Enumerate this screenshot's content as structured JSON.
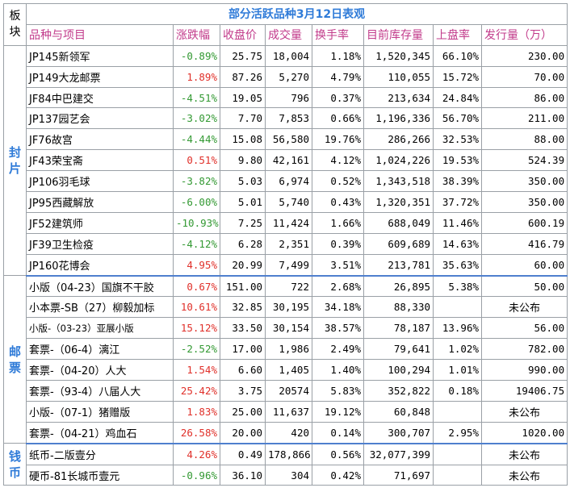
{
  "title": "部分活跃品种3月12日表观",
  "corner_label": "板块",
  "headers": [
    "品种与项目",
    "涨跌幅",
    "收盘价",
    "成交量",
    "换手率",
    "目前库存量",
    "上盘率",
    "发行量（万）"
  ],
  "groups": [
    {
      "name": "封片",
      "rows": [
        {
          "name": "JP145新领军",
          "change": "-0.89%",
          "close": "25.75",
          "volume": "18,004",
          "turnover": "1.18%",
          "stock": "1,520,345",
          "listing": "66.10%",
          "issue": "230.00"
        },
        {
          "name": "JP149大龙邮票",
          "change": "1.89%",
          "close": "87.26",
          "volume": "5,270",
          "turnover": "4.79%",
          "stock": "110,055",
          "listing": "15.72%",
          "issue": "70.00"
        },
        {
          "name": "JF84中巴建交",
          "change": "-4.51%",
          "close": "19.05",
          "volume": "796",
          "turnover": "0.37%",
          "stock": "213,634",
          "listing": "24.84%",
          "issue": "86.00"
        },
        {
          "name": "JP137园艺会",
          "change": "-3.02%",
          "close": "7.70",
          "volume": "7,853",
          "turnover": "0.66%",
          "stock": "1,196,336",
          "listing": "56.70%",
          "issue": "211.00"
        },
        {
          "name": "JF76故宫",
          "change": "-4.44%",
          "close": "15.08",
          "volume": "56,580",
          "turnover": "19.76%",
          "stock": "286,266",
          "listing": "32.53%",
          "issue": "88.00"
        },
        {
          "name": "JF43荣宝斋",
          "change": "0.51%",
          "close": "9.80",
          "volume": "42,161",
          "turnover": "4.12%",
          "stock": "1,024,226",
          "listing": "19.53%",
          "issue": "524.39"
        },
        {
          "name": "JP106羽毛球",
          "change": "-3.82%",
          "close": "5.03",
          "volume": "6,974",
          "turnover": "0.52%",
          "stock": "1,343,518",
          "listing": "38.39%",
          "issue": "350.00"
        },
        {
          "name": "JP95西藏解放",
          "change": "-6.00%",
          "close": "5.01",
          "volume": "5,740",
          "turnover": "0.43%",
          "stock": "1,320,351",
          "listing": "37.72%",
          "issue": "350.00"
        },
        {
          "name": "JF52建筑师",
          "change": "-10.93%",
          "close": "7.25",
          "volume": "11,424",
          "turnover": "1.66%",
          "stock": "688,049",
          "listing": "11.46%",
          "issue": "600.19"
        },
        {
          "name": "JF39卫生检疫",
          "change": "-4.12%",
          "close": "6.28",
          "volume": "2,351",
          "turnover": "0.39%",
          "stock": "609,689",
          "listing": "14.63%",
          "issue": "416.79"
        },
        {
          "name": "JP160花博会",
          "change": "4.95%",
          "close": "20.99",
          "volume": "7,499",
          "turnover": "3.51%",
          "stock": "213,781",
          "listing": "35.63%",
          "issue": "60.00"
        }
      ]
    },
    {
      "name": "邮票",
      "rows": [
        {
          "name": "小版（04-23）国旗不干胶",
          "change": "0.67%",
          "close": "151.00",
          "volume": "722",
          "turnover": "2.68%",
          "stock": "26,895",
          "listing": "5.38%",
          "issue": "50.00"
        },
        {
          "name": "小本票-SB（27）柳毅加标",
          "change": "10.61%",
          "close": "32.85",
          "volume": "30,195",
          "turnover": "34.18%",
          "stock": "88,330",
          "listing": "",
          "issue": "未公布"
        },
        {
          "name": "小版-（03-23）亚展小版",
          "change": "15.12%",
          "close": "33.50",
          "volume": "30,154",
          "turnover": "38.57%",
          "stock": "78,187",
          "listing": "13.96%",
          "issue": "56.00",
          "small": true
        },
        {
          "name": "套票-（06-4）漓江",
          "change": "-2.52%",
          "close": "17.00",
          "volume": "1,986",
          "turnover": "2.49%",
          "stock": "79,641",
          "listing": "1.02%",
          "issue": "782.00"
        },
        {
          "name": "套票-（04-20）人大",
          "change": "1.54%",
          "close": "6.60",
          "volume": "1,405",
          "turnover": "1.40%",
          "stock": "100,294",
          "listing": "1.01%",
          "issue": "990.00"
        },
        {
          "name": "套票-（93-4）八届人大",
          "change": "25.42%",
          "close": "3.75",
          "volume": "20574",
          "turnover": "5.83%",
          "stock": "352,822",
          "listing": "0.18%",
          "issue": "19406.75"
        },
        {
          "name": "小版-（07-1）猪赠版",
          "change": "1.83%",
          "close": "25.00",
          "volume": "11,637",
          "turnover": "19.12%",
          "stock": "60,848",
          "listing": "",
          "issue": "未公布"
        },
        {
          "name": "套票-（04-21）鸡血石",
          "change": "26.58%",
          "close": "20.00",
          "volume": "420",
          "turnover": "0.14%",
          "stock": "300,707",
          "listing": "2.95%",
          "issue": "1020.00"
        }
      ]
    },
    {
      "name": "钱币",
      "rows": [
        {
          "name": "纸币-二版壹分",
          "change": "4.26%",
          "close": "0.49",
          "volume": "178,866",
          "turnover": "0.56%",
          "stock": "32,077,399",
          "listing": "",
          "issue": "未公布"
        },
        {
          "name": "硬币-81长城币壹元",
          "change": "-0.96%",
          "close": "36.10",
          "volume": "304",
          "turnover": "0.42%",
          "stock": "71,697",
          "listing": "",
          "issue": "未公布"
        }
      ]
    }
  ]
}
